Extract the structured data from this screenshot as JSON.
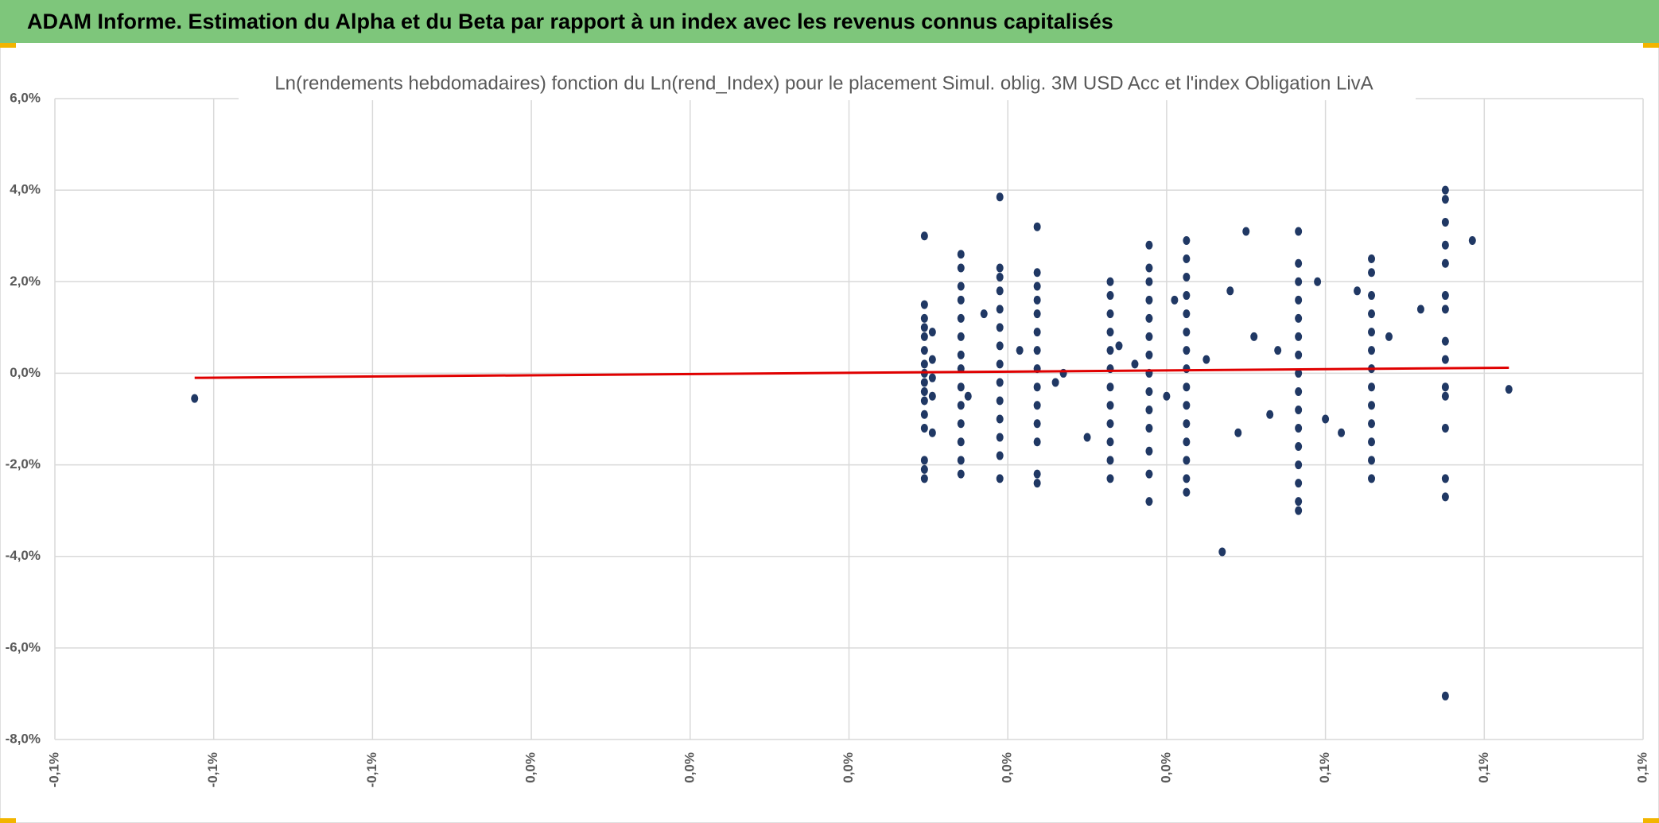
{
  "header": {
    "title": "ADAM Informe. Estimation du Alpha et du Beta par rapport à un index avec les revenus connus capitalisés"
  },
  "chart_data": {
    "type": "scatter",
    "title": "Ln(rendements hebdomadaires) fonction du Ln(rend_Index) pour le placement Simul. oblig. 3M USD Acc et l'index Obligation LivA",
    "xlim": [
      -0.1,
      0.1
    ],
    "xticks": [
      {
        "value": -0.1,
        "label": "-0,1%"
      },
      {
        "value": -0.08,
        "label": "-0,1%"
      },
      {
        "value": -0.06,
        "label": "-0,1%"
      },
      {
        "value": -0.04,
        "label": "0,0%"
      },
      {
        "value": -0.02,
        "label": "0,0%"
      },
      {
        "value": 0,
        "label": "0,0%"
      },
      {
        "value": 0.02,
        "label": "0,0%"
      },
      {
        "value": 0.04,
        "label": "0,0%"
      },
      {
        "value": 0.06,
        "label": "0,1%"
      },
      {
        "value": 0.08,
        "label": "0,1%"
      },
      {
        "value": 0.1,
        "label": "0,1%"
      }
    ],
    "ylim": [
      -8,
      6
    ],
    "yticks": [
      {
        "value": -8,
        "label": "-8,0%"
      },
      {
        "value": -6,
        "label": "-6,0%"
      },
      {
        "value": -4,
        "label": "-4,0%"
      },
      {
        "value": -2,
        "label": "-2,0%"
      },
      {
        "value": 0,
        "label": "0,0%"
      },
      {
        "value": 2,
        "label": "2,0%"
      },
      {
        "value": 4,
        "label": "4,0%"
      },
      {
        "value": 6,
        "label": "6,0%"
      }
    ],
    "grid": true,
    "series": [
      {
        "color": "#203864",
        "x": [
          0.0095,
          0.0095,
          0.0095,
          0.0095,
          0.0095,
          0.0095,
          0.0095,
          0.0095,
          0.0095,
          0.0095,
          0.0095,
          0.0095,
          0.0095,
          0.0095,
          0.0095,
          0.0095,
          0.0105,
          0.0105,
          0.0105,
          0.0105,
          0.0105,
          0.0141,
          0.0141,
          0.0141,
          0.0141,
          0.0141,
          0.0141,
          0.0141,
          0.0141,
          0.0141,
          0.0141,
          0.0141,
          0.0141,
          0.0141,
          0.0141,
          0.019,
          0.019,
          0.019,
          0.019,
          0.019,
          0.019,
          0.019,
          0.019,
          0.019,
          0.019,
          0.019,
          0.019,
          0.019,
          0.019,
          0.0237,
          0.0237,
          0.0237,
          0.0237,
          0.0237,
          0.0237,
          0.0237,
          0.0237,
          0.0237,
          0.0237,
          0.0237,
          0.0237,
          0.0237,
          0.0237,
          0.0329,
          0.0329,
          0.0329,
          0.0329,
          0.0329,
          0.0329,
          0.0329,
          0.0329,
          0.0329,
          0.0329,
          0.0329,
          0.0329,
          0.0378,
          0.0378,
          0.0378,
          0.0378,
          0.0378,
          0.0378,
          0.0378,
          0.0378,
          0.0378,
          0.0378,
          0.0378,
          0.0378,
          0.0378,
          0.0378,
          0.0425,
          0.0425,
          0.0425,
          0.0425,
          0.0425,
          0.0425,
          0.0425,
          0.0425,
          0.0425,
          0.0425,
          0.0425,
          0.0425,
          0.0425,
          0.0425,
          0.0425,
          0.0566,
          0.0566,
          0.0566,
          0.0566,
          0.0566,
          0.0566,
          0.0566,
          0.0566,
          0.0566,
          0.0566,
          0.0566,
          0.0566,
          0.0566,
          0.0566,
          0.0566,
          0.0566,
          0.0658,
          0.0658,
          0.0658,
          0.0658,
          0.0658,
          0.0658,
          0.0658,
          0.0658,
          0.0658,
          0.0658,
          0.0658,
          0.0658,
          0.0658,
          0.0751,
          0.0751,
          0.0751,
          0.0751,
          0.0751,
          0.0751,
          0.0751,
          0.0751,
          0.0751,
          0.0751,
          0.0751,
          0.0751,
          0.0751,
          0.0751,
          0.0751,
          0.015,
          0.017,
          0.0215,
          0.026,
          0.027,
          0.03,
          0.034,
          0.036,
          0.04,
          0.041,
          0.045,
          0.047,
          0.048,
          0.049,
          0.05,
          0.051,
          0.053,
          0.054,
          0.059,
          0.06,
          0.062,
          0.064,
          0.068,
          0.072,
          0.0785,
          0.0831,
          -0.0824
        ],
        "values": [
          3.0,
          1.5,
          1.2,
          1.0,
          0.8,
          0.5,
          0.2,
          0,
          -0.2,
          -0.4,
          -0.6,
          -0.9,
          -1.2,
          -1.9,
          -2.1,
          -2.3,
          0.9,
          0.3,
          -0.1,
          -0.5,
          -1.3,
          2.6,
          2.3,
          1.9,
          1.6,
          1.2,
          0.8,
          0.4,
          0.1,
          -0.3,
          -0.7,
          -1.1,
          -1.5,
          -1.9,
          -2.2,
          3.85,
          2.3,
          2.1,
          1.8,
          1.4,
          1.0,
          0.6,
          0.2,
          -0.2,
          -0.6,
          -1.0,
          -1.4,
          -1.8,
          -2.3,
          3.2,
          2.2,
          1.9,
          1.6,
          1.3,
          0.9,
          0.5,
          0.1,
          -0.3,
          -0.7,
          -1.1,
          -1.5,
          -2.2,
          -2.4,
          2.0,
          1.7,
          1.3,
          0.9,
          0.5,
          0.1,
          -0.3,
          -0.7,
          -1.1,
          -1.5,
          -1.9,
          -2.3,
          2.8,
          2.3,
          2.0,
          1.6,
          1.2,
          0.8,
          0.4,
          0,
          -0.4,
          -0.8,
          -1.2,
          -1.7,
          -2.2,
          -2.8,
          2.9,
          2.5,
          2.1,
          1.7,
          1.3,
          0.9,
          0.5,
          0.1,
          -0.3,
          -0.7,
          -1.1,
          -1.5,
          -1.9,
          -2.3,
          -2.6,
          3.1,
          2.4,
          2.0,
          1.6,
          1.2,
          0.8,
          0.4,
          0,
          -0.4,
          -0.8,
          -1.2,
          -1.6,
          -2.0,
          -2.4,
          -2.8,
          -3.0,
          2.5,
          2.2,
          1.7,
          1.3,
          0.9,
          0.5,
          0.1,
          -0.3,
          -0.7,
          -1.1,
          -1.5,
          -1.9,
          -2.3,
          4.0,
          3.8,
          3.3,
          2.8,
          2.4,
          1.7,
          1.4,
          0.7,
          0.3,
          -0.3,
          -0.5,
          -1.2,
          -2.3,
          -2.7,
          -7.05,
          -0.5,
          1.3,
          0.5,
          -0.2,
          0,
          -1.4,
          0.6,
          0.2,
          -0.5,
          1.6,
          0.3,
          -3.9,
          1.8,
          -1.3,
          3.1,
          0.8,
          -0.9,
          0.5,
          2.0,
          -1.0,
          -1.3,
          1.8,
          0.8,
          1.4,
          2.9,
          -0.35,
          -0.55
        ]
      }
    ],
    "trendline": {
      "color": "#e00000",
      "x": [
        -0.0824,
        0.0831
      ],
      "values": [
        -0.1,
        0.12
      ]
    }
  }
}
